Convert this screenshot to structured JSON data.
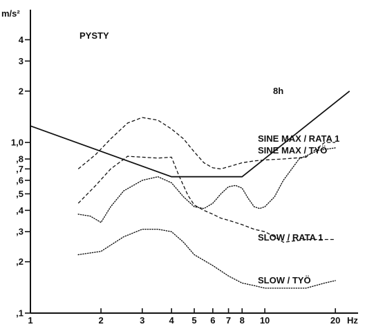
{
  "chart_data": {
    "type": "line",
    "x_scale": "log",
    "y_scale": "log",
    "xlim": [
      1,
      25
    ],
    "ylim": [
      0.1,
      6
    ],
    "ylabel": "m/s²",
    "xlabel": "Hz",
    "x_ticks": [
      {
        "value": 1,
        "label": "1"
      },
      {
        "value": 2,
        "label": "2"
      },
      {
        "value": 3,
        "label": "3"
      },
      {
        "value": 4,
        "label": "4"
      },
      {
        "value": 5,
        "label": "5"
      },
      {
        "value": 6,
        "label": "6"
      },
      {
        "value": 7,
        "label": "7"
      },
      {
        "value": 8,
        "label": "8"
      },
      {
        "value": 10,
        "label": "10"
      },
      {
        "value": 20,
        "label": "20"
      }
    ],
    "y_ticks": [
      {
        "value": 0.1,
        "label": ",1"
      },
      {
        "value": 0.2,
        "label": ",2"
      },
      {
        "value": 0.3,
        "label": ",3"
      },
      {
        "value": 0.4,
        "label": ",4"
      },
      {
        "value": 0.5,
        "label": ",5"
      },
      {
        "value": 0.6,
        "label": ",6"
      },
      {
        "value": 0.7,
        "label": ",7"
      },
      {
        "value": 0.8,
        "label": ",8"
      },
      {
        "value": 1.0,
        "label": "1,0"
      },
      {
        "value": 2,
        "label": "2"
      },
      {
        "value": 3,
        "label": "3"
      },
      {
        "value": 4,
        "label": "4"
      }
    ],
    "panel_label": "PYSTY",
    "series": [
      {
        "name": "8h",
        "style": "solid",
        "x": [
          1,
          4,
          8,
          23
        ],
        "y": [
          1.25,
          0.63,
          0.63,
          2.0
        ]
      },
      {
        "name": "SINE MAX / RATA 1",
        "style": "dashed",
        "x": [
          1.6,
          1.9,
          2.2,
          2.6,
          3.0,
          3.5,
          4.0,
          4.5,
          5.0,
          5.5,
          6.0,
          6.5,
          7.0,
          8.0,
          9.0,
          10.0,
          12.0,
          15.0,
          18.0,
          20.0
        ],
        "y": [
          0.7,
          0.85,
          1.05,
          1.3,
          1.4,
          1.35,
          1.2,
          1.05,
          0.88,
          0.76,
          0.71,
          0.7,
          0.72,
          0.76,
          0.78,
          0.79,
          0.8,
          0.82,
          1.0,
          1.0
        ]
      },
      {
        "name": "SINE MAX / TYÖ",
        "style": "dashed",
        "x": [
          1.6,
          1.9,
          2.2,
          2.6,
          3.0,
          3.5,
          4.0,
          4.3,
          4.7,
          5.0,
          5.5,
          6.0,
          6.5,
          7.0,
          8.0,
          9.0,
          10.0,
          11.0,
          12.0,
          15.0,
          18.0,
          20.0
        ],
        "y": [
          0.44,
          0.56,
          0.7,
          0.83,
          0.82,
          0.81,
          0.82,
          0.64,
          0.49,
          0.43,
          0.4,
          0.38,
          0.36,
          0.35,
          0.33,
          0.31,
          0.3,
          0.28,
          0.26,
          0.27,
          0.27,
          0.27
        ]
      },
      {
        "name": "SLOW / RATA 1",
        "style": "dotted",
        "x": [
          1.6,
          1.8,
          2.0,
          2.2,
          2.5,
          3.0,
          3.5,
          4.0,
          4.5,
          5.0,
          5.5,
          6.0,
          6.5,
          7.0,
          7.5,
          8.0,
          8.5,
          9.0,
          9.5,
          10.0,
          11.0,
          12.0,
          14.0,
          17.0,
          20.0
        ],
        "y": [
          0.38,
          0.37,
          0.34,
          0.42,
          0.52,
          0.6,
          0.63,
          0.58,
          0.48,
          0.42,
          0.41,
          0.44,
          0.5,
          0.55,
          0.56,
          0.54,
          0.47,
          0.42,
          0.41,
          0.42,
          0.48,
          0.6,
          0.8,
          0.9,
          0.93
        ]
      },
      {
        "name": "SLOW / TYÖ",
        "style": "dotted",
        "x": [
          1.6,
          2.0,
          2.5,
          3.0,
          3.5,
          4.0,
          4.5,
          5.0,
          6.0,
          7.0,
          8.0,
          9.0,
          10.0,
          12.0,
          15.0,
          18.0,
          20.0
        ],
        "y": [
          0.22,
          0.23,
          0.28,
          0.31,
          0.31,
          0.3,
          0.26,
          0.22,
          0.19,
          0.165,
          0.15,
          0.145,
          0.14,
          0.14,
          0.14,
          0.15,
          0.155
        ]
      }
    ]
  },
  "annotations": [
    {
      "series_name": "8h",
      "text": "8h"
    },
    {
      "series_name": "SINE MAX / RATA 1",
      "text": "SINE MAX / RATA 1"
    },
    {
      "series_name": "SINE MAX / TYÖ",
      "text": "SINE MAX / TYÖ"
    },
    {
      "series_name": "SLOW / RATA 1",
      "text": "SLOW / RATA 1"
    },
    {
      "series_name": "SLOW / TYÖ",
      "text": "SLOW / TYÖ"
    }
  ]
}
